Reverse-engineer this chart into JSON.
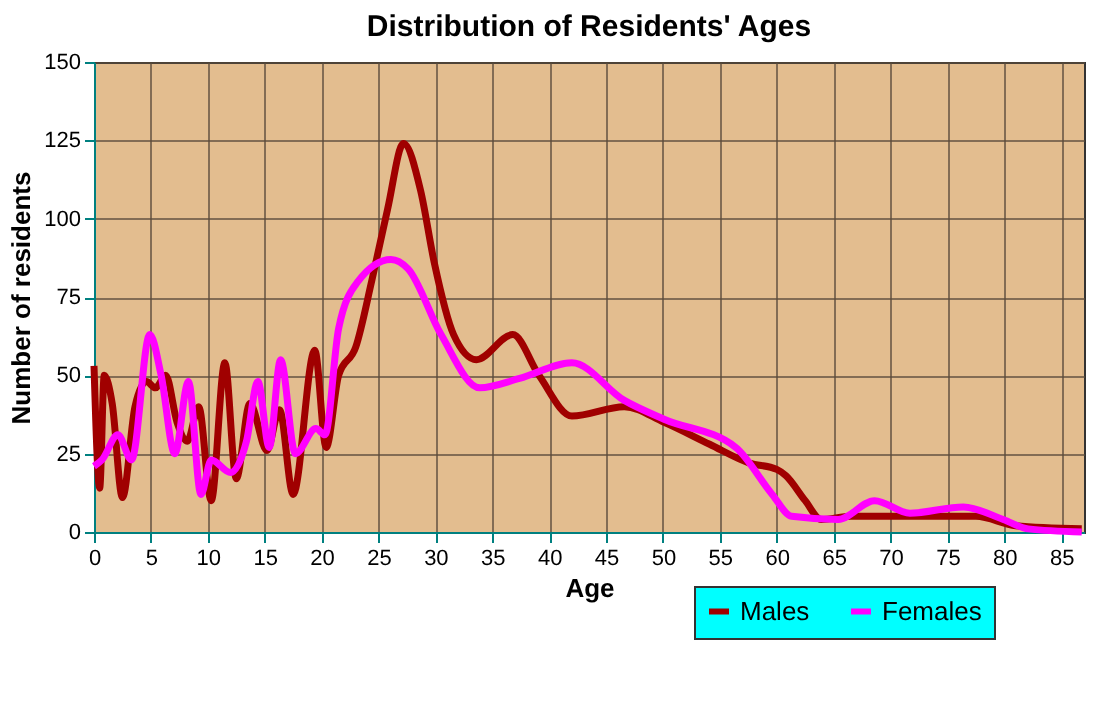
{
  "chart_data": {
    "type": "line",
    "title": "Distribution of Residents' Ages",
    "xlabel": "Age",
    "ylabel": "Number of residents",
    "xlim": [
      0,
      87
    ],
    "xticks": [
      0,
      5,
      10,
      15,
      20,
      25,
      30,
      35,
      40,
      45,
      50,
      55,
      60,
      65,
      70,
      75,
      80,
      85
    ],
    "ylim": [
      0,
      150
    ],
    "yticks": [
      0,
      25,
      50,
      75,
      100,
      125,
      150
    ],
    "grid": true,
    "legend": "bottom right",
    "marker": "none",
    "line_style": "solid",
    "series": [
      {
        "name": "Males",
        "color": "#a00000",
        "x": [
          0,
          0.5,
          0.9,
          1.6,
          2.5,
          3.6,
          4.6,
          5.4,
          6.3,
          7.3,
          8.2,
          9.2,
          10.3,
          11.5,
          12.5,
          13.7,
          15.2,
          16.3,
          17.5,
          19.4,
          20.4,
          21.5,
          23,
          24.4,
          25.8,
          27.2,
          28.7,
          29.9,
          31.6,
          33.6,
          36.8,
          39.1,
          42,
          46.6,
          50.1,
          54.1,
          57.6,
          60,
          60.8,
          62.5,
          63.9,
          66.5,
          74,
          77.5,
          81,
          86.8
        ],
        "values": [
          53,
          14,
          50,
          41,
          11,
          40,
          48,
          46,
          50,
          35,
          29,
          40,
          10,
          54,
          17,
          41,
          26,
          39,
          12,
          58,
          27,
          50,
          59,
          80,
          103,
          124,
          109,
          86,
          63,
          55,
          63,
          50,
          37,
          40,
          35,
          28,
          22,
          20,
          18,
          10,
          4,
          5,
          5,
          5,
          2,
          1
        ]
      },
      {
        "name": "Females",
        "color": "#ff00ff",
        "x": [
          0,
          0.7,
          2.1,
          3.3,
          4.9,
          5.9,
          7.1,
          8.3,
          9.4,
          10.3,
          12,
          13.4,
          14.4,
          15.4,
          16.4,
          17.7,
          19.5,
          20.3,
          21.5,
          23.2,
          26.1,
          27.6,
          30.5,
          33.9,
          37.4,
          42,
          46.6,
          50.1,
          56.4,
          59.6,
          61.3,
          65.4,
          68.6,
          71.7,
          76.4,
          79.9,
          82.1,
          86.8
        ],
        "values": [
          21,
          23,
          31,
          23,
          63,
          50,
          25,
          48,
          12,
          23,
          19,
          29,
          48,
          27,
          55,
          25,
          33,
          31,
          65,
          80,
          87,
          84,
          63,
          46,
          49,
          54,
          42,
          36,
          27,
          12,
          5,
          4,
          10,
          6,
          8,
          4,
          1,
          0
        ]
      }
    ]
  }
}
